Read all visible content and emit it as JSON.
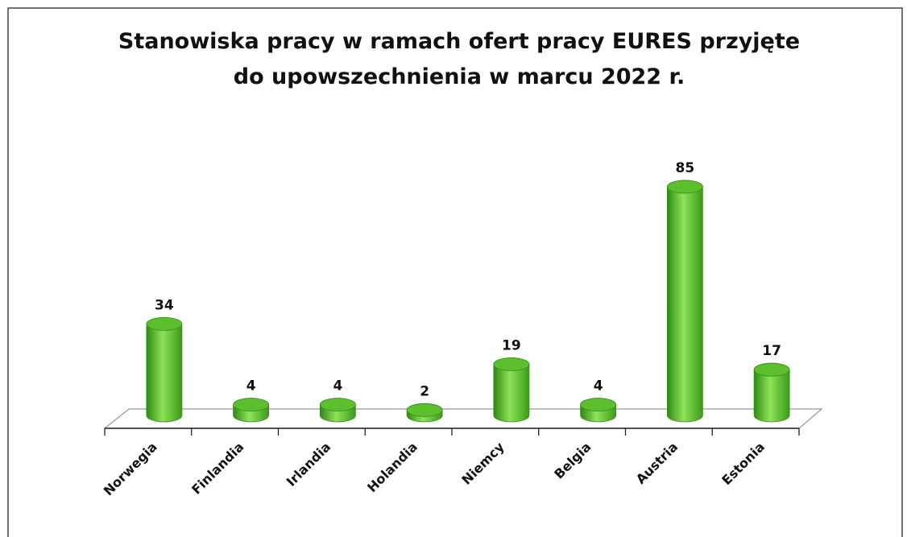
{
  "chart_data": {
    "type": "bar",
    "title": "Stanowiska pracy w ramach ofert pracy EURES przyjęte do upowszechnienia w marcu 2022 r.",
    "categories": [
      "Norwegia",
      "Finlandia",
      "Irlandia",
      "Holandia",
      "Niemcy",
      "Belgia",
      "Austria",
      "Estonia"
    ],
    "values": [
      34,
      4,
      4,
      2,
      19,
      4,
      85,
      17
    ],
    "color": "#5cc02e"
  }
}
